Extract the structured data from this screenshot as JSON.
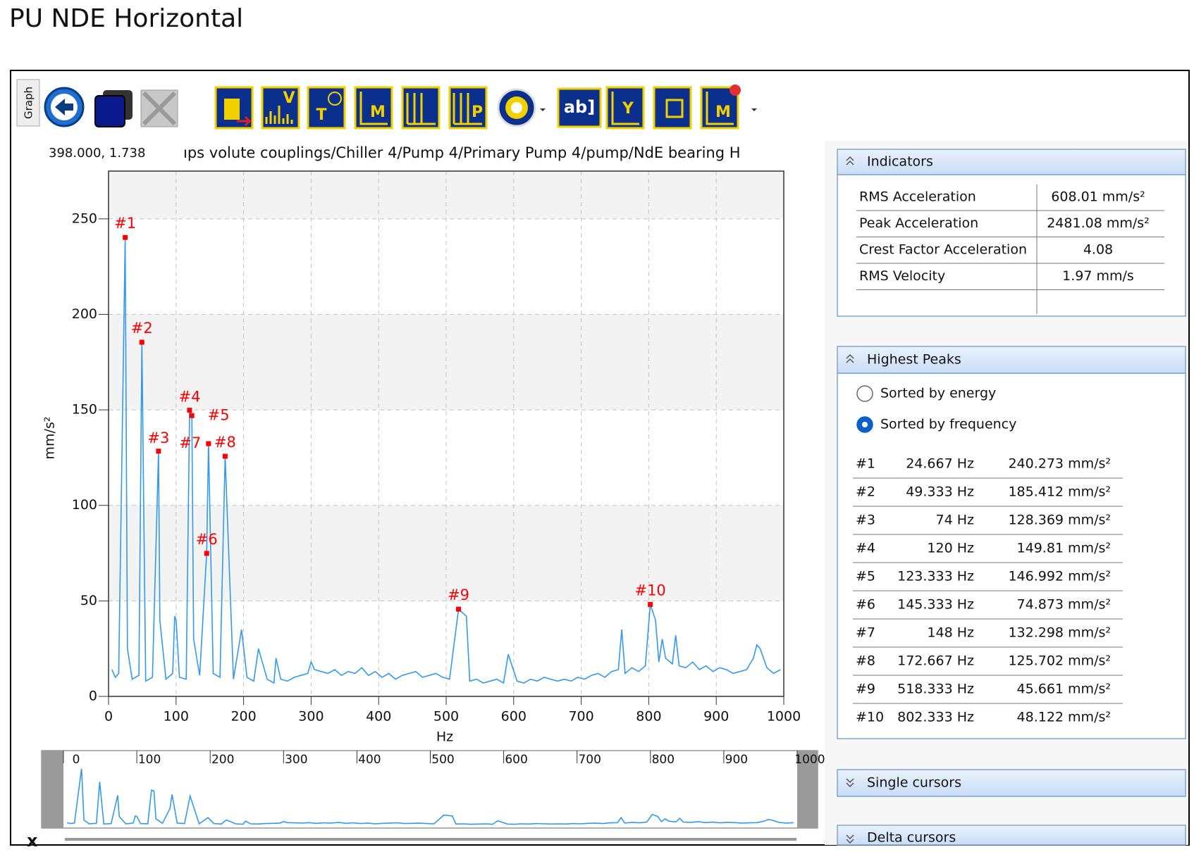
{
  "page": {
    "title": "PU NDE Horizontal",
    "tab": "Graph",
    "cursor_readout": "398.000, 1.738",
    "path": "ıps volute couplings/Chiller 4/Pump 4/Primary Pump 4/pump/NdE bearing H",
    "close": "x"
  },
  "toolbar": {
    "icon_labels": [
      "V",
      "T",
      "M",
      "P",
      "ab]",
      "Y",
      "M"
    ]
  },
  "chart_data": {
    "type": "line",
    "color": "#3399ee",
    "xlabel": "Hz",
    "ylabel": "mm/s²",
    "xlim": [
      0,
      1000
    ],
    "xticks": [
      0,
      100,
      200,
      300,
      400,
      500,
      600,
      700,
      800,
      900,
      1000
    ],
    "ylim": [
      0,
      275
    ],
    "yticks": [
      0,
      50,
      100,
      150,
      200,
      250
    ],
    "grid": true,
    "x": [
      5,
      10,
      15,
      24.667,
      28,
      35,
      45,
      49.333,
      55,
      65,
      74,
      76,
      85,
      95,
      98,
      100,
      105,
      115,
      120,
      123.333,
      126,
      135,
      145.333,
      148,
      155,
      165,
      172.667,
      185,
      197,
      205,
      215,
      222,
      235,
      245,
      248,
      255,
      265,
      275,
      285,
      295,
      300,
      305,
      315,
      325,
      335,
      345,
      355,
      365,
      375,
      385,
      395,
      405,
      415,
      425,
      435,
      445,
      455,
      465,
      475,
      485,
      495,
      505,
      518.333,
      530,
      535,
      545,
      555,
      565,
      575,
      585,
      592,
      605,
      615,
      625,
      635,
      645,
      655,
      665,
      675,
      685,
      695,
      705,
      715,
      725,
      735,
      745,
      755,
      760,
      765,
      775,
      785,
      795,
      802.333,
      810,
      815,
      820,
      825,
      835,
      840,
      845,
      855,
      865,
      875,
      885,
      895,
      905,
      915,
      925,
      935,
      945,
      955,
      960,
      965,
      975,
      985,
      995
    ],
    "values": [
      14,
      10,
      12,
      240.273,
      25,
      9,
      11,
      185.412,
      8,
      10,
      128.369,
      40,
      9,
      12,
      42,
      40,
      10,
      9,
      149.81,
      146.992,
      30,
      11,
      74.873,
      132.298,
      12,
      10,
      125.702,
      9,
      35,
      10,
      8,
      25,
      9,
      7,
      20,
      9,
      8,
      10,
      11,
      12,
      18,
      14,
      13,
      12,
      14,
      11,
      13,
      12,
      15,
      11,
      13,
      10,
      12,
      9,
      11,
      12,
      13,
      10,
      11,
      12,
      10,
      9,
      45.661,
      42,
      8,
      9,
      7,
      8,
      9,
      7,
      22,
      8,
      7,
      9,
      8,
      10,
      9,
      8,
      9,
      8,
      10,
      9,
      11,
      12,
      10,
      13,
      14,
      35,
      12,
      15,
      13,
      16,
      48.122,
      40,
      18,
      30,
      20,
      17,
      32,
      16,
      15,
      18,
      14,
      16,
      13,
      15,
      14,
      12,
      13,
      14,
      20,
      27,
      25,
      15,
      12,
      14
    ],
    "peaks": {
      "color": "#ff0000",
      "x": [
        24.667,
        49.333,
        74,
        120,
        123.333,
        145.333,
        148,
        172.667,
        518.333,
        802.333
      ],
      "values": [
        240.273,
        185.412,
        128.369,
        149.81,
        146.992,
        74.873,
        132.298,
        125.702,
        45.661,
        48.122
      ]
    }
  },
  "indicators": {
    "title": "Indicators",
    "rows": [
      [
        "RMS Acceleration",
        "608.01 mm/s²"
      ],
      [
        "Peak Acceleration",
        "2481.08 mm/s²"
      ],
      [
        "Crest Factor Acceleration",
        "4.08"
      ],
      [
        "RMS Velocity",
        "1.97 mm/s"
      ]
    ]
  },
  "highest_peaks": {
    "title": "Highest Peaks",
    "options": [
      "Sorted by energy",
      "Sorted by frequency"
    ],
    "selected": 1,
    "rows": [
      [
        "#1",
        "24.667 Hz",
        "240.273 mm/s²"
      ],
      [
        "#2",
        "49.333 Hz",
        "185.412 mm/s²"
      ],
      [
        "#3",
        "74 Hz",
        "128.369 mm/s²"
      ],
      [
        "#4",
        "120 Hz",
        "149.81 mm/s²"
      ],
      [
        "#5",
        "123.333 Hz",
        "146.992 mm/s²"
      ],
      [
        "#6",
        "145.333 Hz",
        "74.873 mm/s²"
      ],
      [
        "#7",
        "148 Hz",
        "132.298 mm/s²"
      ],
      [
        "#8",
        "172.667 Hz",
        "125.702 mm/s²"
      ],
      [
        "#9",
        "518.333 Hz",
        "45.661 mm/s²"
      ],
      [
        "#10",
        "802.333 Hz",
        "48.122 mm/s²"
      ]
    ]
  },
  "sections": [
    "Single cursors",
    "Delta cursors"
  ]
}
